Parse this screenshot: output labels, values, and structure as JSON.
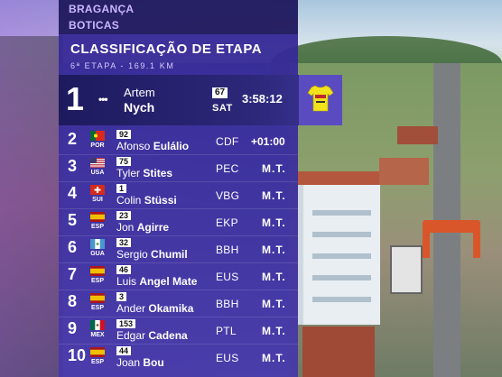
{
  "location": {
    "line1": "BRAGANÇA",
    "line2": "BOTICAS"
  },
  "header": {
    "title": "CLASSIFICAÇÃO DE ETAPA",
    "subtitle": "6ª ETAPA - 169.1 KM"
  },
  "leader": {
    "position": "1",
    "dots": "•••",
    "first_name": "Artem",
    "last_name": "Nych",
    "bib": "67",
    "team": "SAT",
    "time": "3:58:12",
    "jersey_icon": "yellow-leader-jersey-icon"
  },
  "rows": [
    {
      "position": "2",
      "country": "POR",
      "flag": "portugal-flag-icon",
      "bib": "92",
      "first_name": "Afonso",
      "last_name": "Eulálio",
      "team": "CDF",
      "gap": "+01:00"
    },
    {
      "position": "3",
      "country": "USA",
      "flag": "usa-flag-icon",
      "bib": "75",
      "first_name": "Tyler",
      "last_name": "Stites",
      "team": "PEC",
      "gap": "M.T."
    },
    {
      "position": "4",
      "country": "SUI",
      "flag": "switzerland-flag-icon",
      "bib": "1",
      "first_name": "Colin",
      "last_name": "Stüssi",
      "team": "VBG",
      "gap": "M.T."
    },
    {
      "position": "5",
      "country": "ESP",
      "flag": "spain-flag-icon",
      "bib": "23",
      "first_name": "Jon",
      "last_name": "Agirre",
      "team": "EKP",
      "gap": "M.T."
    },
    {
      "position": "6",
      "country": "GUA",
      "flag": "guatemala-flag-icon",
      "bib": "32",
      "first_name": "Sergio",
      "last_name": "Chumil",
      "team": "BBH",
      "gap": "M.T."
    },
    {
      "position": "7",
      "country": "ESP",
      "flag": "spain-flag-icon",
      "bib": "46",
      "first_name": "Luis",
      "last_name": "Angel Mate",
      "team": "EUS",
      "gap": "M.T."
    },
    {
      "position": "8",
      "country": "ESP",
      "flag": "spain-flag-icon",
      "bib": "3",
      "first_name": "Ander",
      "last_name": "Okamika",
      "team": "BBH",
      "gap": "M.T."
    },
    {
      "position": "9",
      "country": "MEX",
      "flag": "mexico-flag-icon",
      "bib": "153",
      "first_name": "Edgar",
      "last_name": "Cadena",
      "team": "PTL",
      "gap": "M.T."
    },
    {
      "position": "10",
      "country": "ESP",
      "flag": "spain-flag-icon",
      "bib": "44",
      "first_name": "Joan",
      "last_name": "Bou",
      "team": "EUS",
      "gap": "M.T."
    }
  ],
  "colors": {
    "panel": "#3b2f9e",
    "location_text": "#c9b6ff",
    "jersey": "#f2e21a"
  }
}
